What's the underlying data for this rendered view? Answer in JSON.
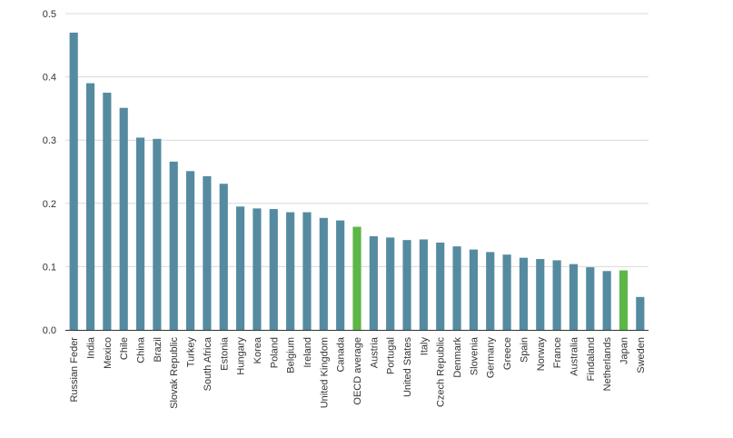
{
  "chart_data": {
    "type": "bar",
    "categories": [
      "Russian Feder",
      "India",
      "Mexico",
      "Chile",
      "China",
      "Brazil",
      "Slovak Republic",
      "Turkey",
      "South Africa",
      "Estonia",
      "Hungary",
      "Korea",
      "Poland",
      "Belgium",
      "Ireland",
      "United Kingdom",
      "Canada",
      "OECD average",
      "Austria",
      "Portugal",
      "United States",
      "Italy",
      "Czech Republic",
      "Denmark",
      "Slovenia",
      "Germany",
      "Greece",
      "Spain",
      "Norway",
      "France",
      "Australia",
      "Findaland",
      "Netherlands",
      "Japan",
      "Sweden"
    ],
    "values": [
      0.47,
      0.39,
      0.375,
      0.351,
      0.304,
      0.302,
      0.266,
      0.251,
      0.243,
      0.231,
      0.195,
      0.192,
      0.191,
      0.186,
      0.186,
      0.177,
      0.173,
      0.163,
      0.148,
      0.146,
      0.142,
      0.143,
      0.138,
      0.132,
      0.127,
      0.123,
      0.119,
      0.114,
      0.112,
      0.11,
      0.104,
      0.099,
      0.093,
      0.094,
      0.052
    ],
    "highlighted": [
      "OECD average",
      "Japan"
    ],
    "ylim": [
      0,
      0.5
    ],
    "yticks": [
      "0.0",
      "0.1",
      "0.2",
      "0.3",
      "0.4",
      "0.5"
    ],
    "grid": true,
    "title": "",
    "xlabel": "",
    "ylabel": "",
    "colors": {
      "bar": "#558ba0",
      "highlight": "#5cb746",
      "grid": "#d9d9d9",
      "axis": "#333333",
      "text": "#333333"
    }
  }
}
